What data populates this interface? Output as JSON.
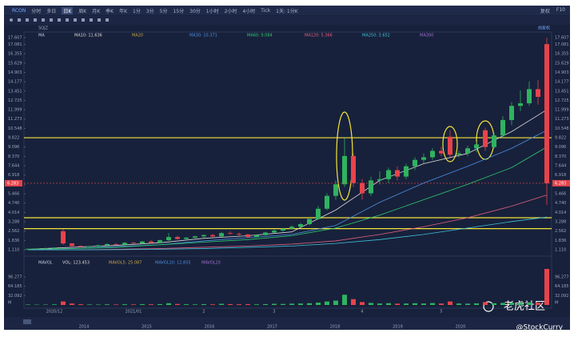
{
  "toolbar": {
    "symbol": "RCON",
    "periods": [
      "分时",
      "多日",
      "日K",
      "周K",
      "月K",
      "季K",
      "年K",
      "1分",
      "3分",
      "5分",
      "15分",
      "30分",
      "1小时",
      "2小时",
      "4小时",
      "Tick",
      "1天: 1分K"
    ],
    "active": 2,
    "right": [
      "复权",
      "F10"
    ]
  },
  "indicator_bar": {
    "name": "SQJZ",
    "adjust": "前复权"
  },
  "ma_legend": [
    "MA",
    "MA10: 11.636",
    "MA20",
    "MA30: 10.371",
    "MA60: 9.084",
    "MA120: 5.366",
    "MA250: 3.652",
    "MA300"
  ],
  "volume_legend": [
    "MAVOL",
    "VOL: 123.453",
    "MAVOL5: 25.087",
    "MAVOL10: 12.855",
    "MAVOL20"
  ],
  "watermark": {
    "brand": "老虎社区",
    "author": "@StockCurry"
  },
  "years": [
    "2014",
    "2015",
    "2016",
    "2017",
    "2018",
    "2019",
    "2020"
  ],
  "chart_data": {
    "type": "candlestick",
    "categories": [
      null,
      null,
      null,
      "2020/12",
      null,
      null,
      null,
      null,
      null,
      null,
      null,
      null,
      "2021/01",
      null,
      null,
      null,
      null,
      null,
      null,
      null,
      "2",
      null,
      null,
      null,
      null,
      null,
      null,
      null,
      "3",
      null,
      null,
      null,
      null,
      null,
      null,
      null,
      null,
      null,
      "4",
      null,
      null,
      null,
      null,
      null,
      null,
      null,
      null,
      "5",
      null,
      null,
      null,
      null,
      null,
      null,
      null,
      null,
      null,
      null,
      null,
      null
    ],
    "open": [
      1.12,
      1.18,
      1.2,
      1.22,
      2.55,
      1.6,
      1.4,
      1.35,
      1.38,
      1.45,
      1.55,
      1.5,
      1.65,
      1.6,
      1.75,
      1.65,
      1.85,
      2.1,
      1.95,
      2.05,
      2.15,
      2.25,
      2.15,
      2.4,
      2.35,
      2.3,
      2.1,
      2.25,
      2.45,
      2.6,
      2.75,
      2.9,
      3.1,
      3.5,
      4.3,
      5.3,
      6.2,
      8.4,
      6.3,
      5.5,
      6.5,
      6.6,
      7.3,
      6.8,
      7.6,
      8.1,
      8.3,
      8.8,
      9.9,
      8.5,
      8.6,
      9.0,
      10.4,
      9.1,
      10.0,
      11.2,
      12.3,
      12.5,
      13.6,
      17.1
    ],
    "high": [
      1.2,
      1.25,
      1.28,
      1.3,
      2.7,
      1.65,
      1.45,
      1.42,
      1.5,
      1.6,
      1.62,
      1.7,
      1.72,
      1.8,
      1.85,
      1.9,
      2.4,
      2.2,
      2.1,
      2.2,
      2.3,
      2.35,
      2.5,
      2.55,
      2.45,
      2.35,
      2.3,
      2.5,
      2.7,
      2.8,
      3.0,
      3.2,
      3.6,
      4.5,
      5.5,
      6.5,
      9.8,
      8.6,
      6.6,
      6.8,
      7.2,
      7.5,
      7.6,
      7.8,
      8.3,
      8.6,
      9.0,
      9.1,
      10.4,
      8.8,
      9.2,
      9.5,
      10.6,
      10.2,
      11.5,
      12.6,
      13.5,
      14.2,
      14.3,
      17.6
    ],
    "low": [
      1.1,
      1.14,
      1.15,
      1.18,
      1.5,
      1.35,
      1.3,
      1.28,
      1.33,
      1.4,
      1.45,
      1.48,
      1.55,
      1.58,
      1.6,
      1.62,
      1.8,
      1.9,
      1.85,
      2.0,
      2.05,
      2.1,
      2.1,
      2.3,
      2.2,
      2.0,
      2.05,
      2.2,
      2.4,
      2.5,
      2.7,
      2.85,
      3.0,
      3.45,
      4.2,
      5.0,
      6.0,
      6.0,
      5.0,
      5.3,
      6.2,
      6.3,
      6.5,
      6.6,
      7.3,
      7.8,
      8.1,
      8.4,
      8.3,
      8.3,
      8.4,
      8.7,
      8.8,
      9.0,
      9.8,
      10.8,
      11.9,
      12.3,
      12.4,
      4.6
    ],
    "close": [
      1.18,
      1.2,
      1.22,
      1.25,
      1.6,
      1.4,
      1.35,
      1.38,
      1.45,
      1.55,
      1.5,
      1.65,
      1.6,
      1.75,
      1.65,
      1.85,
      2.1,
      1.95,
      2.05,
      2.15,
      2.25,
      2.15,
      2.4,
      2.35,
      2.3,
      2.1,
      2.25,
      2.45,
      2.6,
      2.75,
      2.9,
      3.1,
      3.5,
      4.3,
      5.3,
      6.2,
      8.4,
      6.3,
      5.5,
      6.5,
      6.6,
      7.3,
      6.8,
      7.6,
      8.1,
      8.3,
      8.8,
      8.6,
      8.5,
      8.6,
      9.0,
      9.3,
      9.1,
      10.0,
      11.2,
      12.3,
      12.5,
      13.6,
      13.0,
      6.283
    ],
    "volume": [
      1.5,
      1.2,
      1.4,
      2.0,
      12.0,
      5.0,
      2.5,
      1.8,
      1.5,
      2.2,
      1.8,
      2.5,
      2.0,
      2.8,
      2.4,
      3.0,
      6.0,
      3.5,
      2.5,
      2.0,
      2.8,
      2.2,
      4.0,
      3.0,
      2.5,
      3.0,
      2.2,
      3.0,
      4.0,
      3.5,
      4.5,
      5.0,
      6.0,
      8.0,
      12.0,
      15.0,
      35.0,
      20.0,
      10.0,
      7.0,
      5.0,
      6.0,
      4.5,
      5.0,
      6.0,
      5.0,
      6.5,
      5.0,
      12.0,
      5.0,
      4.5,
      5.5,
      10.0,
      6.0,
      7.0,
      8.0,
      7.0,
      9.0,
      8.0,
      123.453
    ],
    "ma_x": [
      0,
      5,
      10,
      15,
      20,
      25,
      30,
      35,
      40,
      45,
      50,
      55,
      59
    ],
    "ma_series": [
      {
        "color": "#d9d9d9",
        "values": [
          1.15,
          1.3,
          1.45,
          1.65,
          2.0,
          2.2,
          2.5,
          4.2,
          6.5,
          7.8,
          8.6,
          10.3,
          12.0
        ]
      },
      {
        "color": "#4a8fe0",
        "values": [
          1.1,
          1.2,
          1.35,
          1.5,
          1.8,
          2.05,
          2.3,
          3.0,
          4.8,
          6.3,
          7.6,
          9.0,
          10.4
        ]
      },
      {
        "color": "#2ecc71",
        "values": [
          1.15,
          1.2,
          1.3,
          1.5,
          1.7,
          1.9,
          2.2,
          2.8,
          3.8,
          5.0,
          6.2,
          7.5,
          9.1
        ]
      },
      {
        "color": "#e06080",
        "values": [
          1.1,
          1.1,
          1.15,
          1.2,
          1.3,
          1.4,
          1.55,
          1.8,
          2.3,
          2.9,
          3.6,
          4.5,
          5.37
        ]
      },
      {
        "color": "#3fc1d9",
        "values": [
          1.1,
          1.1,
          1.12,
          1.15,
          1.2,
          1.3,
          1.4,
          1.6,
          1.9,
          2.3,
          2.8,
          3.3,
          3.65
        ]
      }
    ],
    "up_color": "#2fb35f",
    "down_color": "#e8434b",
    "hlines": [
      9.822,
      3.6,
      2.75
    ],
    "hline_color": "#f2e43a",
    "ylim": [
      1.11,
      17.607
    ],
    "yticks": [
      {
        "value": 1.11,
        "label": "1.110"
      },
      1.836,
      2.562,
      3.288,
      4.014,
      {
        "value": 4.74,
        "label": "4.740"
      },
      5.466,
      6.192,
      6.918,
      7.644,
      {
        "value": 8.37,
        "label": "8.370"
      },
      9.096,
      9.822,
      10.548,
      11.273,
      11.999,
      12.725,
      13.451,
      14.177,
      14.903,
      15.629,
      16.355,
      17.081,
      17.607
    ],
    "vlim": [
      0,
      123.453
    ],
    "vticks": [
      32.092,
      64.185,
      96.277
    ],
    "vunit": "M"
  }
}
